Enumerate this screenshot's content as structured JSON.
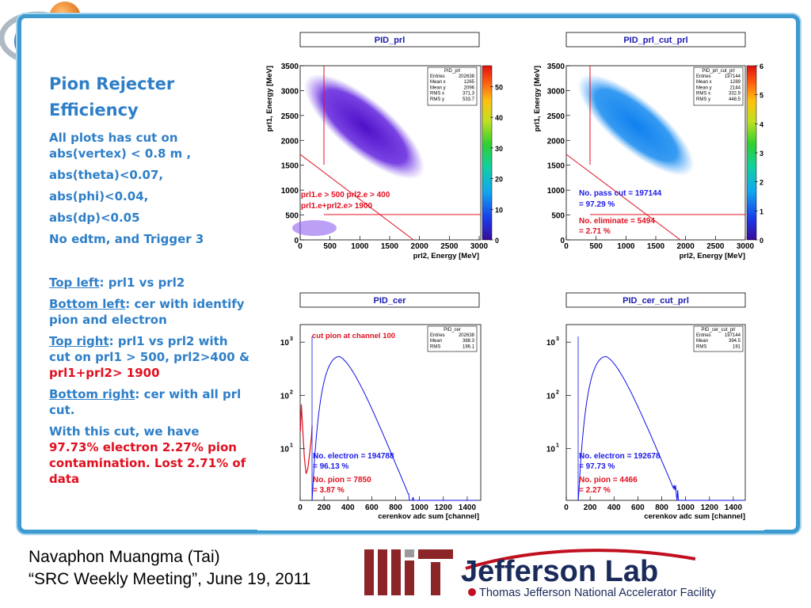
{
  "slide": {
    "title": "Pion Rejecter Efficiency",
    "cuts": [
      "All plots has cut on abs(vertex) < 0.8 m ,",
      "abs(theta)<0.07,",
      "abs(phi)<0.04,",
      "abs(dp)<0.05",
      "No edtm, and Trigger 3"
    ],
    "desc": {
      "top_left_label": "Top left",
      "top_left_text": ": prl1 vs prl2",
      "bottom_left_label": "Bottom left",
      "bottom_left_text": ":  cer with identify pion and electron",
      "top_right_label": "Top right",
      "top_right_text": ": prl1 vs prl2 with cut on prl1 > 500, prl2>400 &",
      "top_right_red": "prl1+prl2> 1900",
      "bottom_right_label": "Bottom right",
      "bottom_right_text": ": cer with all prl cut.",
      "result_text": "With this cut, we have",
      "result_red": "97.73% electron 2.27% pion contamination. Lost 2.71% of data"
    }
  },
  "footer": {
    "line1": "Navaphon Muangma (Tai)",
    "line2": "“SRC Weekly Meeting”, June 19, 2011"
  },
  "logos": {
    "mit": "MIT",
    "jlab": "Jefferson Lab",
    "jlab_sub": "Thomas Jefferson National Accelerator Facility"
  },
  "colors": {
    "accent": "#3d9bd0",
    "text_blue": "#2e7fc8",
    "red": "#e01020",
    "hist_blue": "#1010e8"
  },
  "plots": {
    "tl": {
      "title": "PID_prl",
      "xlabel": "prl2, Energy [MeV]",
      "ylabel": "prl1, Energy [MeV]",
      "stats_title": "PID_prl",
      "stats": [
        [
          "Entries",
          "202638"
        ],
        [
          "Mean x",
          "1265"
        ],
        [
          "Mean y",
          "2096"
        ],
        [
          "RMS x",
          "371.3"
        ],
        [
          "RMS y",
          "533.7"
        ]
      ],
      "zticks": [
        "50",
        "40",
        "30",
        "20",
        "10",
        "0"
      ],
      "ann1": "prl1.e > 500 prl2.e > 400",
      "ann2": "prl1.e+prl2.e> 1900"
    },
    "tr": {
      "title": "PID_prl_cut_prl",
      "xlabel": "prl2, Energy [MeV]",
      "ylabel": "prl1, Energy [MeV]",
      "stats_title": "PID_prl_cut_prl",
      "stats": [
        [
          "Entries",
          "197144"
        ],
        [
          "Mean x",
          "1289"
        ],
        [
          "Mean y",
          "2144"
        ],
        [
          "RMS x",
          "332.9"
        ],
        [
          "RMS y",
          "448.5"
        ]
      ],
      "zticks": [
        "6",
        "5",
        "4",
        "3",
        "2",
        "1",
        "0"
      ],
      "ann1": "No. pass cut = 197144",
      "ann2": " = 97.29 %",
      "ann3": "No. eliminate = 5494",
      "ann4": " = 2.71 %"
    },
    "bl": {
      "title": "PID_cer",
      "xlabel": "cerenkov adc sum [channel]",
      "stats_title": "PID_cer",
      "stats": [
        [
          "Entries",
          "202638"
        ],
        [
          "Mean",
          "388.3"
        ],
        [
          "RMS",
          "196.1"
        ]
      ],
      "ann0": "cut pion at channel 100",
      "ann1": "No. electron = 194788",
      "ann2": " = 96.13 %",
      "ann3": "No. pion = 7850",
      "ann4": " = 3.87 %"
    },
    "br": {
      "title": "PID_cer_cut_prl",
      "xlabel": "cerenkov adc sum [channel]",
      "stats_title": "PID_cer_cut_prl",
      "stats": [
        [
          "Entries",
          "197144"
        ],
        [
          "Mean",
          "394.5"
        ],
        [
          "RMS",
          "191"
        ]
      ],
      "ann1": "No. electron = 192678",
      "ann2": " = 97.73 %",
      "ann3": "No. pion = 4466",
      "ann4": " = 2.27 %"
    },
    "scatter_xticks": [
      "0",
      "500",
      "1000",
      "1500",
      "2000",
      "2500",
      "3000"
    ],
    "scatter_yticks": [
      "0",
      "500",
      "1000",
      "1500",
      "2000",
      "2500",
      "3000",
      "3500"
    ],
    "hist_xticks": [
      "0",
      "200",
      "400",
      "600",
      "800",
      "1000",
      "1200",
      "1400"
    ],
    "hist_yticks": [
      "10",
      "3",
      "10",
      "2",
      "10",
      "1"
    ]
  }
}
